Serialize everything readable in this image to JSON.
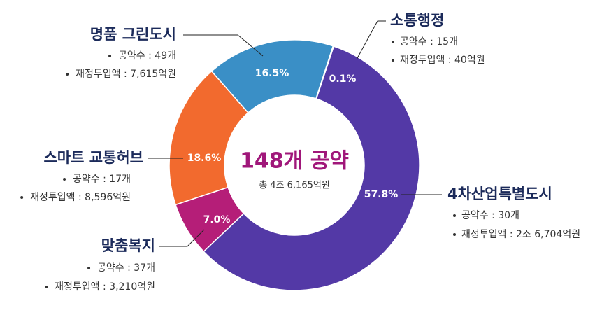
{
  "chart_data": {
    "type": "donut",
    "center_title": "148개 공약",
    "center_subtitle": "총 4조 6,165억원",
    "categories": [
      "소통행정",
      "4차산업특별도시",
      "맞춤복지",
      "스마트 교통허브",
      "명품 그린도시"
    ],
    "values": [
      0.1,
      57.8,
      7.0,
      18.6,
      16.5
    ],
    "value_labels": [
      "0.1%",
      "57.8%",
      "7.0%",
      "18.6%",
      "16.5%"
    ],
    "colors": [
      "#e8962e",
      "#5339a6",
      "#b51e78",
      "#f26a2e",
      "#3a8fc6"
    ],
    "details": [
      [
        "공약수 : 15개",
        "재정투입액 : 40억원"
      ],
      [
        "공약수 : 30개",
        "재정투입액 : 2조 6,704억원"
      ],
      [
        "공약수 : 37개",
        "재정투입액 : 3,210억원"
      ],
      [
        "공약수 : 17개",
        "재정투입액 : 8,596억원"
      ],
      [
        "공약수 : 49개",
        "재정투입액 : 7,615억원"
      ]
    ]
  }
}
